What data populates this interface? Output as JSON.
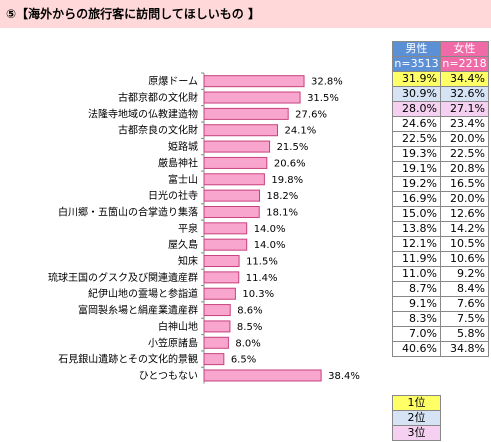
{
  "title": "⑤【海外からの旅行客に訪問してほしいもの 】",
  "chart_data": {
    "type": "bar",
    "orientation": "horizontal",
    "title": "⑤【海外からの旅行客に訪問してほしいもの 】",
    "categories": [
      "原爆ドーム",
      "古都京都の文化財",
      "法隆寺地域の仏教建造物",
      "古都奈良の文化財",
      "姫路城",
      "厳島神社",
      "富士山",
      "日光の社寺",
      "白川郷・五箇山の合掌造り集落",
      "平泉",
      "屋久島",
      "知床",
      "琉球王国のグスク及び関連遺産群",
      "紀伊山地の霊場と参詣道",
      "富岡製糸場と絹産業遺産群",
      "白神山地",
      "小笠原諸島",
      "石見銀山遺跡とその文化的景観",
      "ひとつもない"
    ],
    "series": [
      {
        "values": [
          32.8,
          31.5,
          27.6,
          24.1,
          21.5,
          20.6,
          19.8,
          18.2,
          18.1,
          14.0,
          14.0,
          11.5,
          11.4,
          10.3,
          8.6,
          8.5,
          8.0,
          6.5,
          38.4
        ]
      }
    ],
    "value_labels": [
      "32.8%",
      "31.5%",
      "27.6%",
      "24.1%",
      "21.5%",
      "20.6%",
      "19.8%",
      "18.2%",
      "18.1%",
      "14.0%",
      "14.0%",
      "11.5%",
      "11.4%",
      "10.3%",
      "8.6%",
      "8.5%",
      "8.0%",
      "6.5%",
      "38.4%"
    ],
    "xlim": [
      0,
      50
    ],
    "bar_color": "#f9a6cf",
    "bar_edge": "#c8407d",
    "grid": false,
    "legend": "none"
  },
  "table": {
    "headers": [
      {
        "label": "男性",
        "sub": "n=3513"
      },
      {
        "label": "女性",
        "sub": "n=2218"
      }
    ],
    "rows": [
      {
        "m": "31.9%",
        "f": "34.4%",
        "mr": 1,
        "fr": 1
      },
      {
        "m": "30.9%",
        "f": "32.6%",
        "mr": 2,
        "fr": 2
      },
      {
        "m": "28.0%",
        "f": "27.1%",
        "mr": 3,
        "fr": 3
      },
      {
        "m": "24.6%",
        "f": "23.4%",
        "mr": 0,
        "fr": 0
      },
      {
        "m": "22.5%",
        "f": "20.0%",
        "mr": 0,
        "fr": 0
      },
      {
        "m": "19.3%",
        "f": "22.5%",
        "mr": 0,
        "fr": 0
      },
      {
        "m": "19.1%",
        "f": "20.8%",
        "mr": 0,
        "fr": 0
      },
      {
        "m": "19.2%",
        "f": "16.5%",
        "mr": 0,
        "fr": 0
      },
      {
        "m": "16.9%",
        "f": "20.0%",
        "mr": 0,
        "fr": 0
      },
      {
        "m": "15.0%",
        "f": "12.6%",
        "mr": 0,
        "fr": 0
      },
      {
        "m": "13.8%",
        "f": "14.2%",
        "mr": 0,
        "fr": 0
      },
      {
        "m": "12.1%",
        "f": "10.5%",
        "mr": 0,
        "fr": 0
      },
      {
        "m": "11.9%",
        "f": "10.6%",
        "mr": 0,
        "fr": 0
      },
      {
        "m": "11.0%",
        "f": "9.2%",
        "mr": 0,
        "fr": 0
      },
      {
        "m": "8.7%",
        "f": "8.4%",
        "mr": 0,
        "fr": 0
      },
      {
        "m": "9.1%",
        "f": "7.6%",
        "mr": 0,
        "fr": 0
      },
      {
        "m": "8.3%",
        "f": "7.5%",
        "mr": 0,
        "fr": 0
      },
      {
        "m": "7.0%",
        "f": "5.8%",
        "mr": 0,
        "fr": 0
      },
      {
        "m": "40.6%",
        "f": "34.8%",
        "mr": 0,
        "fr": 0
      }
    ]
  },
  "rank_legend": [
    "1位",
    "2位",
    "3位"
  ],
  "colors": {
    "title_bg": "#ffd9d9",
    "male_header": "#5b8fd6",
    "female_header": "#f06aa8",
    "rank1": "#ffff66",
    "rank2": "#d6e3f5",
    "rank3": "#f5d0f0"
  }
}
